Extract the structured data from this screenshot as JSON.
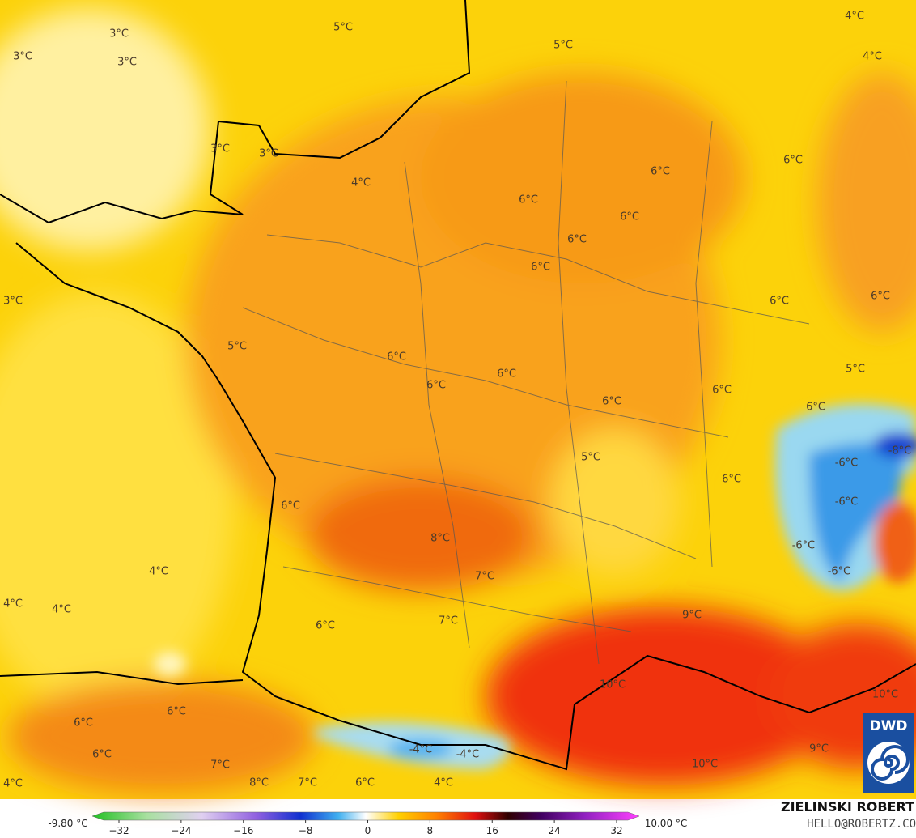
{
  "map": {
    "labels": [
      "3°C",
      "5°C",
      "5°C",
      "4°C",
      "3°C",
      "3°C",
      "4°C",
      "3°C",
      "3°C",
      "4°C",
      "6°C",
      "6°C",
      "6°C",
      "6°C",
      "6°C",
      "6°C",
      "3°C",
      "6°C",
      "6°C",
      "5°C",
      "6°C",
      "6°C",
      "6°C",
      "6°C",
      "6°C",
      "5°C",
      "6°C",
      "-8°C",
      "5°C",
      "-6°C",
      "6°C",
      "-6°C",
      "6°C",
      "8°C",
      "-6°C",
      "-6°C",
      "4°C",
      "7°C",
      "4°C",
      "4°C",
      "9°C",
      "6°C",
      "7°C",
      "10°C",
      "10°C",
      "6°C",
      "6°C",
      "-4°C",
      "-4°C",
      "6°C",
      "7°C",
      "10°C",
      "9°C",
      "4°C",
      "8°C",
      "7°C",
      "6°C",
      "4°C"
    ],
    "colorbar": {
      "min_label": "-9.80 °C",
      "max_label": "10.00 °C",
      "ticks": [
        -32,
        -24,
        -16,
        -8,
        0,
        8,
        16,
        24,
        32
      ],
      "tick_labels": [
        "−32",
        "−24",
        "−16",
        "−8",
        "0",
        "8",
        "16",
        "24",
        "32"
      ]
    },
    "credit": {
      "name": "ZIELINSKI ROBERT",
      "contact": "HELLO@ROBERTZ.CO",
      "logo": "DWD"
    }
  }
}
